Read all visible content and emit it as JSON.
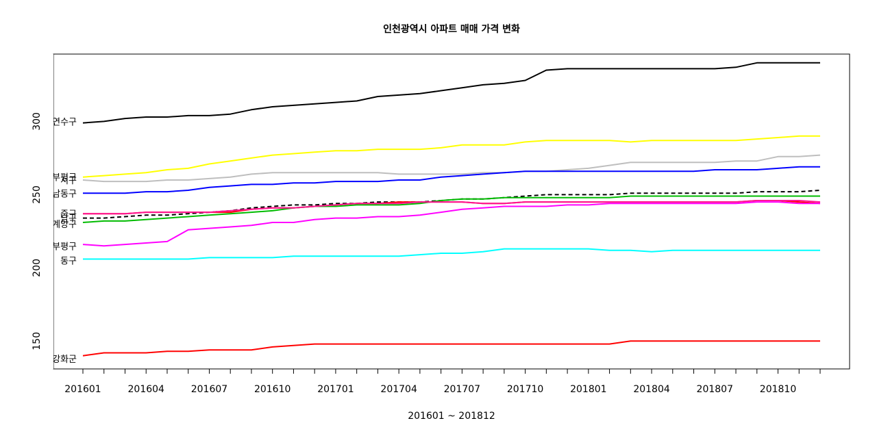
{
  "chart_data": {
    "type": "line",
    "title": "인천광역시 아파트 매매 가격 변화",
    "xlabel": "201601 ~ 201812",
    "ylabel": "",
    "x": [
      "201601",
      "201602",
      "201603",
      "201604",
      "201605",
      "201606",
      "201607",
      "201608",
      "201609",
      "201610",
      "201611",
      "201612",
      "201701",
      "201702",
      "201703",
      "201704",
      "201705",
      "201706",
      "201707",
      "201708",
      "201709",
      "201710",
      "201711",
      "201712",
      "201801",
      "201802",
      "201803",
      "201804",
      "201805",
      "201806",
      "201807",
      "201808",
      "201809",
      "201810",
      "201811",
      "201812"
    ],
    "x_tick_labels": [
      "201601",
      "201604",
      "201607",
      "201610",
      "201701",
      "201704",
      "201707",
      "201710",
      "201801",
      "201804",
      "201807",
      "201810"
    ],
    "y_ticks": [
      150,
      200,
      250,
      300
    ],
    "ylim": [
      131,
      346
    ],
    "grid": false,
    "legend": "none",
    "series": [
      {
        "name": "연수구",
        "color": "#000000",
        "dash": false,
        "values": [
          299,
          300,
          302,
          303,
          303,
          304,
          304,
          305,
          308,
          310,
          311,
          312,
          313,
          314,
          317,
          318,
          319,
          321,
          323,
          325,
          326,
          328,
          335,
          336,
          336,
          336,
          336,
          336,
          336,
          336,
          336,
          337,
          340,
          340,
          340,
          340
        ]
      },
      {
        "name": "",
        "color": "#ffff00",
        "dash": false,
        "values": [
          262,
          263,
          264,
          265,
          267,
          268,
          271,
          273,
          275,
          277,
          278,
          279,
          280,
          280,
          281,
          281,
          281,
          282,
          284,
          284,
          284,
          286,
          287,
          287,
          287,
          287,
          286,
          287,
          287,
          287,
          287,
          287,
          288,
          289,
          290,
          290
        ]
      },
      {
        "name": "부평구",
        "color": "#bebebe",
        "dash": false,
        "values": [
          260,
          259,
          259,
          259,
          260,
          260,
          261,
          262,
          264,
          265,
          265,
          265,
          265,
          265,
          265,
          264,
          264,
          264,
          264,
          265,
          265,
          266,
          266,
          267,
          268,
          270,
          272,
          272,
          272,
          272,
          272,
          273,
          273,
          276,
          276,
          277
        ]
      },
      {
        "name": "서구",
        "color": "#0000ff",
        "dash": false,
        "values": [
          251,
          251,
          251,
          252,
          252,
          253,
          255,
          256,
          257,
          257,
          258,
          258,
          259,
          259,
          259,
          260,
          260,
          262,
          263,
          264,
          265,
          266,
          266,
          266,
          266,
          266,
          266,
          266,
          266,
          266,
          267,
          267,
          267,
          268,
          269,
          269
        ]
      },
      {
        "name": "남동구",
        "color": "#000000",
        "dash": true,
        "values": [
          234,
          234,
          235,
          236,
          236,
          237,
          238,
          239,
          241,
          242,
          243,
          243,
          244,
          244,
          245,
          245,
          245,
          246,
          247,
          247,
          248,
          249,
          250,
          250,
          250,
          250,
          251,
          251,
          251,
          251,
          251,
          251,
          252,
          252,
          252,
          253
        ]
      },
      {
        "name": "중구",
        "color": "#ff0000",
        "dash": false,
        "values": [
          237,
          237,
          237,
          238,
          238,
          238,
          238,
          238,
          240,
          241,
          241,
          242,
          243,
          244,
          244,
          245,
          245,
          245,
          245,
          244,
          244,
          245,
          245,
          245,
          245,
          245,
          245,
          245,
          245,
          245,
          245,
          245,
          246,
          246,
          245,
          244
        ]
      },
      {
        "name": "",
        "color": "#00bb00",
        "dash": false,
        "values": [
          231,
          232,
          232,
          233,
          234,
          235,
          236,
          237,
          238,
          239,
          241,
          242,
          242,
          243,
          243,
          243,
          244,
          246,
          247,
          247,
          248,
          248,
          248,
          248,
          248,
          248,
          249,
          249,
          249,
          249,
          249,
          249,
          249,
          249,
          249,
          249
        ]
      },
      {
        "name": "",
        "color": "#ff1493",
        "dash": false,
        "values": [
          237,
          237,
          237,
          238,
          238,
          238,
          238,
          239,
          240,
          241,
          241,
          242,
          243,
          244,
          244,
          244,
          245,
          245,
          245,
          244,
          244,
          245,
          245,
          245,
          245,
          245,
          245,
          245,
          245,
          245,
          245,
          245,
          246,
          246,
          246,
          245
        ]
      },
      {
        "name": "계양구",
        "color": "#ff00ff",
        "dash": false,
        "values": [
          216,
          215,
          216,
          217,
          218,
          226,
          227,
          228,
          229,
          231,
          231,
          233,
          234,
          234,
          235,
          235,
          236,
          238,
          240,
          241,
          242,
          242,
          242,
          243,
          243,
          244,
          244,
          244,
          244,
          244,
          244,
          244,
          245,
          245,
          244,
          244
        ]
      },
      {
        "name": "동구",
        "color": "#00ffff",
        "dash": false,
        "values": [
          206,
          206,
          206,
          206,
          206,
          206,
          207,
          207,
          207,
          207,
          208,
          208,
          208,
          208,
          208,
          208,
          209,
          210,
          210,
          211,
          213,
          213,
          213,
          213,
          213,
          212,
          212,
          211,
          212,
          212,
          212,
          212,
          212,
          212,
          212,
          212
        ]
      },
      {
        "name": "강화군",
        "color": "#ff0000",
        "dash": false,
        "values": [
          140,
          142,
          142,
          142,
          143,
          143,
          144,
          144,
          144,
          146,
          147,
          148,
          148,
          148,
          148,
          148,
          148,
          148,
          148,
          148,
          148,
          148,
          148,
          148,
          148,
          148,
          150,
          150,
          150,
          150,
          150,
          150,
          150,
          150,
          150,
          150
        ]
      }
    ],
    "series_labels": [
      {
        "text": "연수구",
        "y": 300,
        "color": "#000000"
      },
      {
        "text": "부평구",
        "y": 262,
        "color": "#000000"
      },
      {
        "text": "서구",
        "y": 260,
        "color": "#000000"
      },
      {
        "text": "남동구",
        "y": 251,
        "color": "#000000"
      },
      {
        "text": "중구",
        "y": 237,
        "color": "#000000"
      },
      {
        "text": "남구",
        "y": 234,
        "color": "#000000"
      },
      {
        "text": "계양구",
        "y": 230,
        "color": "#000000"
      },
      {
        "text": "부평구",
        "y": 215,
        "color": "#000000"
      },
      {
        "text": "동구",
        "y": 205,
        "color": "#000000"
      },
      {
        "text": "강화군",
        "y": 138,
        "color": "#000000"
      }
    ]
  }
}
